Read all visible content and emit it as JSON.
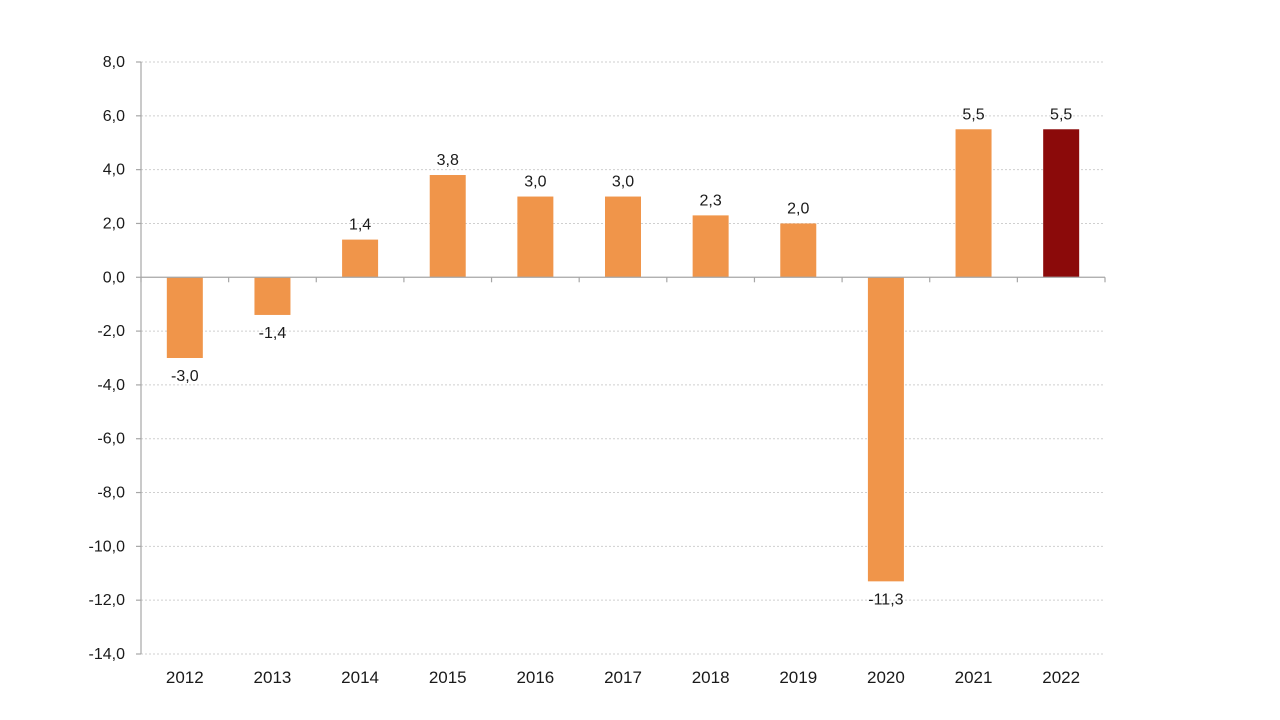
{
  "chart_data": {
    "type": "bar",
    "categories": [
      "2012",
      "2013",
      "2014",
      "2015",
      "2016",
      "2017",
      "2018",
      "2019",
      "2020",
      "2021",
      "2022"
    ],
    "values": [
      -3.0,
      -1.4,
      1.4,
      3.8,
      3.0,
      3.0,
      2.3,
      2.0,
      -11.3,
      5.5,
      5.5
    ],
    "data_labels": [
      "-3,0",
      "-1,4",
      "1,4",
      "3,8",
      "3,0",
      "3,0",
      "2,3",
      "2,0",
      "-11,3",
      "5,5",
      "5,5"
    ],
    "y_ticks": [
      "8,0",
      "6,0",
      "4,0",
      "2,0",
      "0,0",
      "-2,0",
      "-4,0",
      "-6,0",
      "-8,0",
      "-10,0",
      "-12,0",
      "-14,0"
    ],
    "y_tick_values": [
      8,
      6,
      4,
      2,
      0,
      -2,
      -4,
      -6,
      -8,
      -10,
      -12,
      -14
    ],
    "ylim": [
      -14,
      8
    ],
    "title": "",
    "xlabel": "",
    "ylabel": "",
    "grid": true,
    "legend": "none",
    "colors": {
      "bar": "#f0954a",
      "highlight": "#8b0a0a",
      "highlight_categories": [
        "2022"
      ]
    }
  }
}
